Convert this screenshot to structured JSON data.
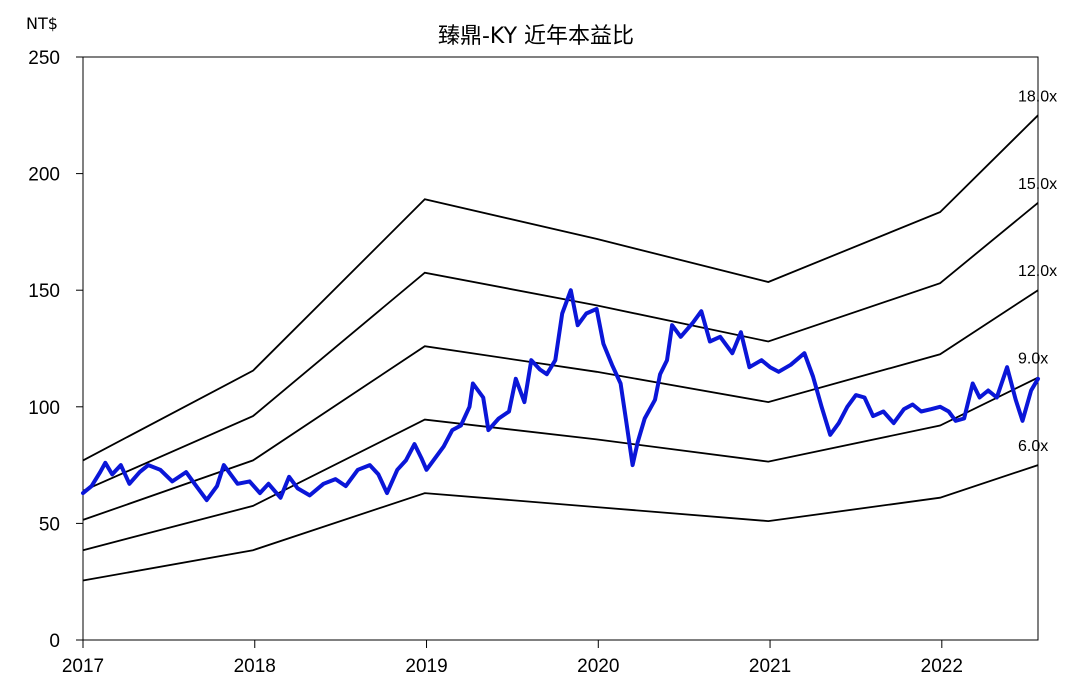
{
  "chart_data": {
    "type": "line",
    "title": "臻鼎-KY 近年本益比",
    "ylabel_unit": "NT$",
    "xlim": [
      2017,
      2022.56
    ],
    "ylim": [
      0,
      250
    ],
    "x_ticks": [
      "2017",
      "2018",
      "2019",
      "2020",
      "2021",
      "2022"
    ],
    "y_ticks": [
      "0",
      "50",
      "100",
      "150",
      "200",
      "250"
    ],
    "grid": false,
    "pe_bands": [
      {
        "name": "6.0x",
        "values": [
          [
            2017.0,
            25.5
          ],
          [
            2017.99,
            38.5
          ],
          [
            2018.99,
            63
          ],
          [
            2019.99,
            57
          ],
          [
            2020.99,
            51
          ],
          [
            2021.99,
            61
          ],
          [
            2022.56,
            75
          ]
        ]
      },
      {
        "name": "9.0x",
        "values": [
          [
            2017.0,
            38.5
          ],
          [
            2017.99,
            57.5
          ],
          [
            2018.99,
            94.5
          ],
          [
            2019.99,
            86
          ],
          [
            2020.99,
            76.5
          ],
          [
            2021.99,
            92
          ],
          [
            2022.56,
            112.5
          ]
        ]
      },
      {
        "name": "12.0x",
        "values": [
          [
            2017.0,
            51.5
          ],
          [
            2017.99,
            77
          ],
          [
            2018.99,
            126
          ],
          [
            2019.99,
            115
          ],
          [
            2020.99,
            102
          ],
          [
            2021.99,
            122.5
          ],
          [
            2022.56,
            150
          ]
        ]
      },
      {
        "name": "15.0x",
        "values": [
          [
            2017.0,
            64
          ],
          [
            2017.99,
            96
          ],
          [
            2018.99,
            157.5
          ],
          [
            2019.99,
            143.5
          ],
          [
            2020.99,
            128
          ],
          [
            2021.99,
            153
          ],
          [
            2022.56,
            187.5
          ]
        ]
      },
      {
        "name": "18.0x",
        "values": [
          [
            2017.0,
            77
          ],
          [
            2017.99,
            115.5
          ],
          [
            2018.99,
            189
          ],
          [
            2019.99,
            172
          ],
          [
            2020.99,
            153.5
          ],
          [
            2021.99,
            183.5
          ],
          [
            2022.56,
            225
          ]
        ]
      }
    ],
    "price_series": {
      "color": "#0a16d8",
      "values": [
        [
          2017.0,
          63
        ],
        [
          2017.05,
          66
        ],
        [
          2017.1,
          72
        ],
        [
          2017.13,
          76
        ],
        [
          2017.17,
          71
        ],
        [
          2017.22,
          75
        ],
        [
          2017.27,
          67
        ],
        [
          2017.33,
          72
        ],
        [
          2017.38,
          75
        ],
        [
          2017.45,
          73
        ],
        [
          2017.52,
          68
        ],
        [
          2017.6,
          72
        ],
        [
          2017.65,
          67
        ],
        [
          2017.72,
          60
        ],
        [
          2017.78,
          66
        ],
        [
          2017.82,
          75
        ],
        [
          2017.9,
          67
        ],
        [
          2017.97,
          68
        ],
        [
          2018.03,
          63
        ],
        [
          2018.08,
          67
        ],
        [
          2018.15,
          61
        ],
        [
          2018.2,
          70
        ],
        [
          2018.25,
          65
        ],
        [
          2018.32,
          62
        ],
        [
          2018.4,
          67
        ],
        [
          2018.47,
          69
        ],
        [
          2018.53,
          66
        ],
        [
          2018.6,
          73
        ],
        [
          2018.67,
          75
        ],
        [
          2018.72,
          71
        ],
        [
          2018.77,
          63
        ],
        [
          2018.83,
          73
        ],
        [
          2018.88,
          77
        ],
        [
          2018.93,
          84
        ],
        [
          2018.97,
          78
        ],
        [
          2019.0,
          73
        ],
        [
          2019.04,
          77
        ],
        [
          2019.1,
          83
        ],
        [
          2019.15,
          90
        ],
        [
          2019.2,
          92
        ],
        [
          2019.25,
          100
        ],
        [
          2019.27,
          110
        ],
        [
          2019.33,
          104
        ],
        [
          2019.36,
          90
        ],
        [
          2019.42,
          95
        ],
        [
          2019.48,
          98
        ],
        [
          2019.52,
          112
        ],
        [
          2019.57,
          102
        ],
        [
          2019.61,
          120
        ],
        [
          2019.66,
          116
        ],
        [
          2019.7,
          114
        ],
        [
          2019.75,
          120
        ],
        [
          2019.79,
          140
        ],
        [
          2019.84,
          150
        ],
        [
          2019.88,
          135
        ],
        [
          2019.93,
          140
        ],
        [
          2019.99,
          142
        ],
        [
          2020.03,
          127
        ],
        [
          2020.08,
          118
        ],
        [
          2020.13,
          110
        ],
        [
          2020.16,
          95
        ],
        [
          2020.2,
          75
        ],
        [
          2020.23,
          85
        ],
        [
          2020.27,
          95
        ],
        [
          2020.33,
          103
        ],
        [
          2020.36,
          114
        ],
        [
          2020.4,
          120
        ],
        [
          2020.43,
          135
        ],
        [
          2020.48,
          130
        ],
        [
          2020.55,
          136
        ],
        [
          2020.6,
          141
        ],
        [
          2020.65,
          128
        ],
        [
          2020.71,
          130
        ],
        [
          2020.78,
          123
        ],
        [
          2020.83,
          132
        ],
        [
          2020.88,
          117
        ],
        [
          2020.95,
          120
        ],
        [
          2021.0,
          117
        ],
        [
          2021.05,
          115
        ],
        [
          2021.12,
          118
        ],
        [
          2021.2,
          123
        ],
        [
          2021.25,
          113
        ],
        [
          2021.3,
          100
        ],
        [
          2021.35,
          88
        ],
        [
          2021.4,
          93
        ],
        [
          2021.45,
          100
        ],
        [
          2021.5,
          105
        ],
        [
          2021.55,
          104
        ],
        [
          2021.6,
          96
        ],
        [
          2021.66,
          98
        ],
        [
          2021.72,
          93
        ],
        [
          2021.78,
          99
        ],
        [
          2021.83,
          101
        ],
        [
          2021.88,
          98
        ],
        [
          2021.94,
          99
        ],
        [
          2021.99,
          100
        ],
        [
          2022.04,
          98
        ],
        [
          2022.08,
          94
        ],
        [
          2022.13,
          95
        ],
        [
          2022.18,
          110
        ],
        [
          2022.22,
          104
        ],
        [
          2022.27,
          107
        ],
        [
          2022.32,
          104
        ],
        [
          2022.38,
          117
        ],
        [
          2022.43,
          103
        ],
        [
          2022.47,
          94
        ],
        [
          2022.52,
          107
        ],
        [
          2022.56,
          112
        ]
      ]
    }
  }
}
